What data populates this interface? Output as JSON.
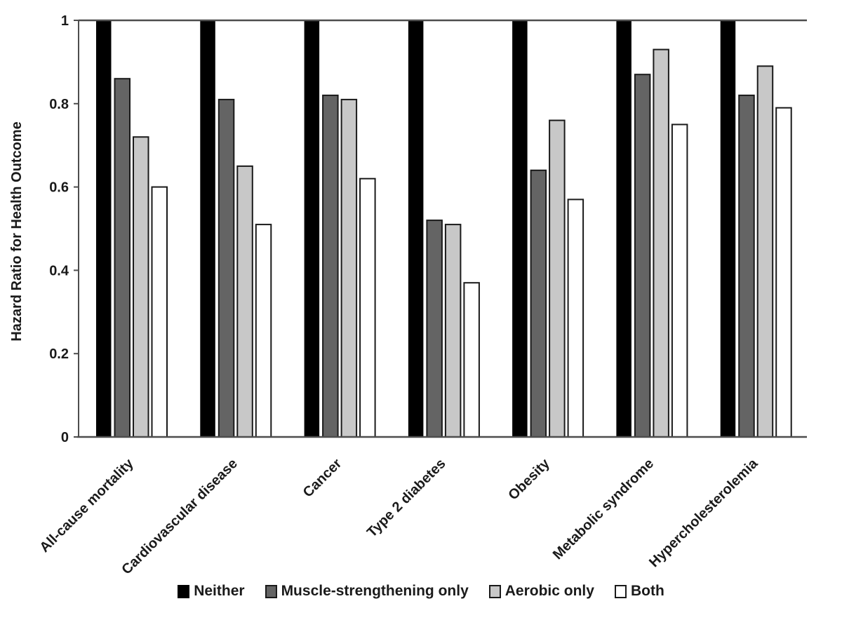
{
  "figure": {
    "background_color": "#ffffff",
    "axis_color": "#4d4d4d",
    "text_color": "#1a1a1a"
  },
  "chart_data": {
    "type": "bar",
    "title": "",
    "xlabel": "",
    "ylabel": "Hazard Ratio for Health Outcome",
    "ylim": [
      0,
      1
    ],
    "yticks": [
      0,
      0.2,
      0.4,
      0.6,
      0.8,
      1
    ],
    "ytick_labels": [
      "0",
      "0.2",
      "0.4",
      "0.6",
      "0.8",
      "1"
    ],
    "grid": false,
    "legend_position": "bottom",
    "reference_line_y": 1,
    "categories": [
      "All-cause mortality",
      "Cardiovascular disease",
      "Cancer",
      "Type 2 diabetes",
      "Obesity",
      "Metabolic syndrome",
      "Hypercholesterolemia"
    ],
    "series": [
      {
        "name": "Neither",
        "color": "#000000",
        "border_color": "#000000",
        "values": [
          1,
          1,
          1,
          1,
          1,
          1,
          1
        ]
      },
      {
        "name": "Muscle-strengthening only",
        "color": "#646464",
        "border_color": "#1a1a1a",
        "values": [
          0.86,
          0.81,
          0.82,
          0.52,
          0.64,
          0.87,
          0.82
        ]
      },
      {
        "name": "Aerobic only",
        "color": "#c8c8c8",
        "border_color": "#1a1a1a",
        "values": [
          0.72,
          0.65,
          0.81,
          0.51,
          0.76,
          0.93,
          0.89
        ]
      },
      {
        "name": "Both",
        "color": "#ffffff",
        "border_color": "#1a1a1a",
        "values": [
          0.6,
          0.51,
          0.62,
          0.37,
          0.57,
          0.75,
          0.79
        ]
      }
    ]
  }
}
